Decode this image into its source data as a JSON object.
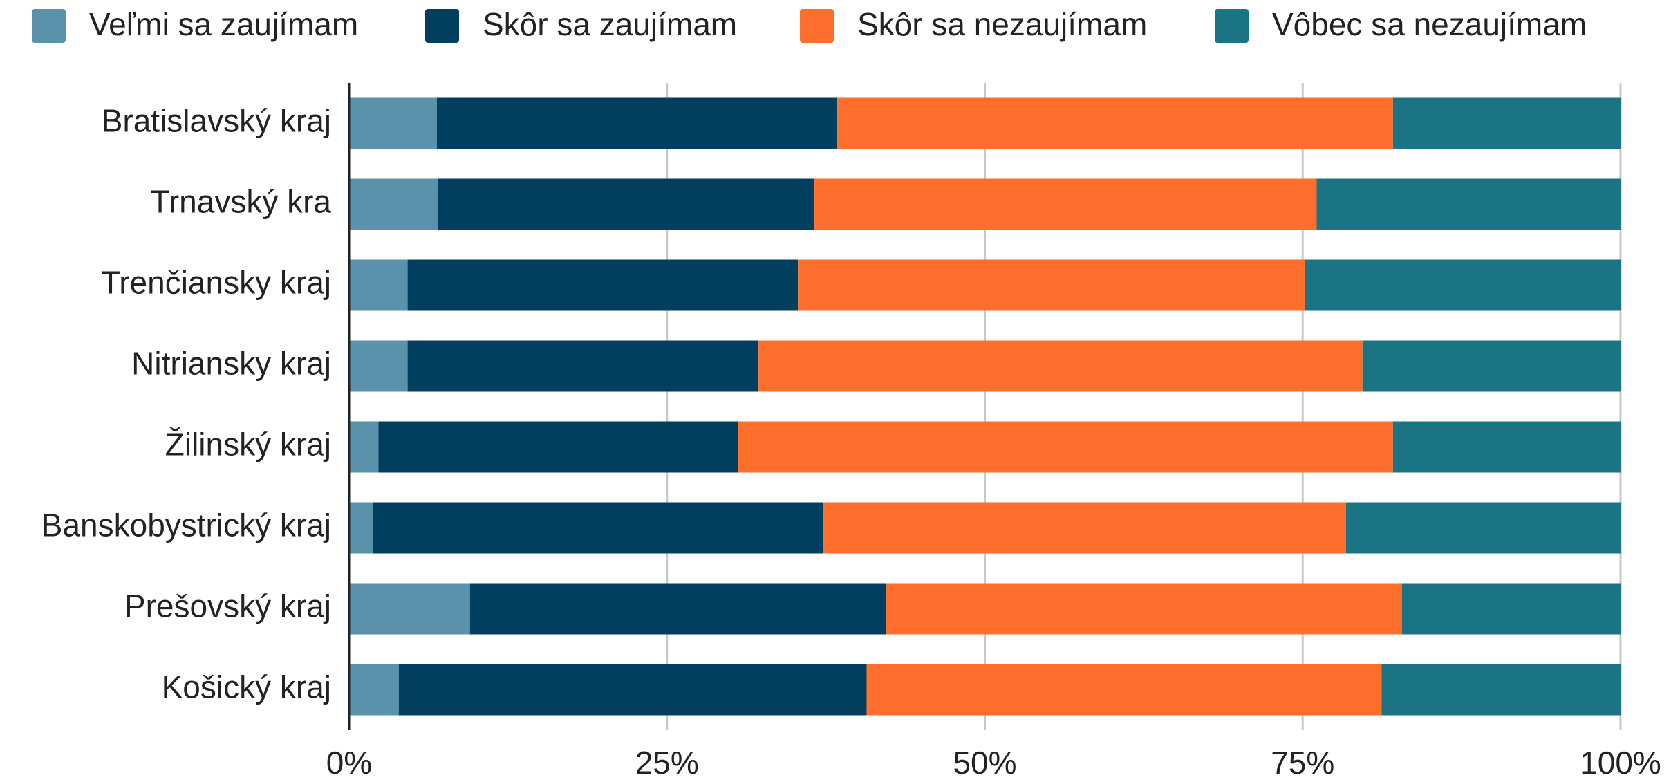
{
  "chart_data": {
    "type": "stacked_barh",
    "categories": [
      "Bratislavský kraj",
      "Trnavský kra",
      "Trenčiansky kraj",
      "Nitriansky kraj",
      "Žilinský kraj",
      "Banskobystrický kraj",
      "Prešovský kraj",
      "Košický kraj"
    ],
    "series": [
      {
        "name": "Veľmi sa zaujímam",
        "color": "#5a91ab",
        "values": [
          6.9,
          7.0,
          4.6,
          4.6,
          2.3,
          1.9,
          9.5,
          3.9
        ]
      },
      {
        "name": "Skôr sa zaujímam",
        "color": "#023f5e",
        "values": [
          31.5,
          29.6,
          30.7,
          27.6,
          28.3,
          35.4,
          32.7,
          36.8
        ]
      },
      {
        "name": "Skôr sa nezaujímam",
        "color": "#fe6f2e",
        "values": [
          43.7,
          39.5,
          39.9,
          47.5,
          51.5,
          41.1,
          40.6,
          40.5
        ]
      },
      {
        "name": "Vôbec sa nezaujímam",
        "color": "#1b7484",
        "values": [
          17.9,
          23.9,
          24.8,
          20.3,
          17.9,
          21.6,
          17.2,
          18.8
        ]
      }
    ],
    "xlim": [
      0,
      100
    ],
    "xticks": [
      {
        "value": 0,
        "label": "0%"
      },
      {
        "value": 25,
        "label": "25%"
      },
      {
        "value": 50,
        "label": "50%"
      },
      {
        "value": 75,
        "label": "75%"
      },
      {
        "value": 100,
        "label": "100%"
      }
    ],
    "grid": true,
    "legend": "top"
  }
}
